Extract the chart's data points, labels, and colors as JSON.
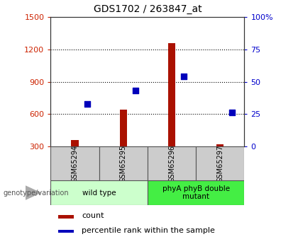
{
  "title": "GDS1702 / 263847_at",
  "samples": [
    "GSM65294",
    "GSM65295",
    "GSM65296",
    "GSM65297"
  ],
  "counts": [
    360,
    640,
    1260,
    320
  ],
  "percentiles": [
    33,
    43,
    54,
    26
  ],
  "ylim_left": [
    300,
    1500
  ],
  "ylim_right": [
    0,
    100
  ],
  "yticks_left": [
    300,
    600,
    900,
    1200,
    1500
  ],
  "yticks_right": [
    0,
    25,
    50,
    75,
    100
  ],
  "bar_color": "#aa1100",
  "dot_color": "#0000bb",
  "bar_width": 0.15,
  "groups": [
    {
      "label": "wild type",
      "samples": [
        0,
        1
      ],
      "color": "#ccffcc"
    },
    {
      "label": "phyA phyB double\nmutant",
      "samples": [
        2,
        3
      ],
      "color": "#44ee44"
    }
  ],
  "genotype_label": "genotype/variation",
  "legend_count_label": "count",
  "legend_pct_label": "percentile rank within the sample",
  "title_color": "#000000",
  "left_axis_color": "#cc2200",
  "right_axis_color": "#0000cc",
  "background_color": "#ffffff",
  "plot_bg_color": "#ffffff",
  "label_box_color": "#cccccc",
  "label_box_color2": "#aaaaaa"
}
